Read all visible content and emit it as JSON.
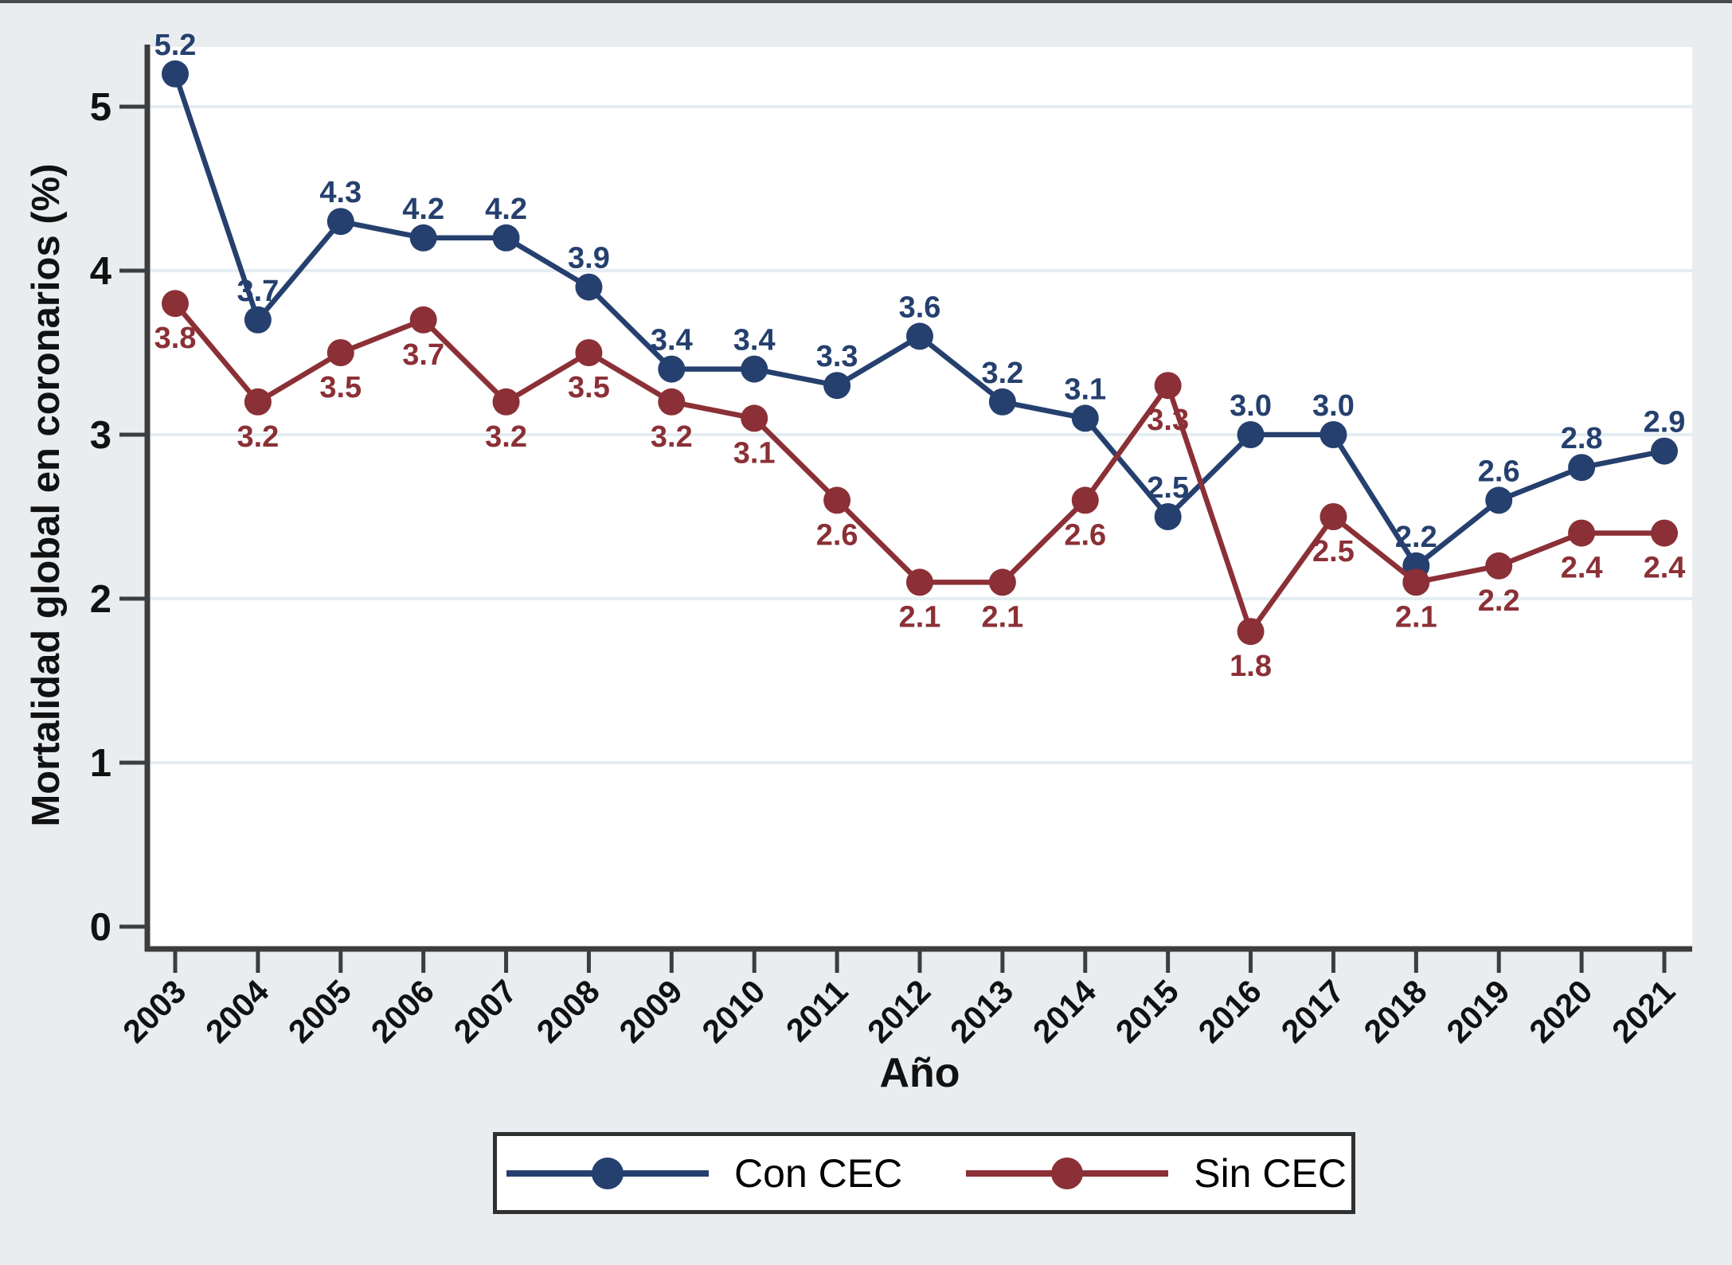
{
  "figure": {
    "background": "#e9edf0",
    "plot_background": "#ffffff",
    "axis_color": "#3d3d3d",
    "grid_color": "#e3edf2",
    "tick_label_color": "#111111"
  },
  "chart_data": {
    "type": "line",
    "title": "",
    "xlabel": "Año",
    "ylabel": "Mortalidad global en coronarios (%)",
    "categories": [
      "2003",
      "2004",
      "2005",
      "2006",
      "2007",
      "2008",
      "2009",
      "2010",
      "2011",
      "2012",
      "2013",
      "2014",
      "2015",
      "2016",
      "2017",
      "2018",
      "2019",
      "2020",
      "2021"
    ],
    "yticks": [
      0,
      1,
      2,
      3,
      4,
      5
    ],
    "ylim": [
      0,
      5.4
    ],
    "grid": "horizontal",
    "legend_position": "bottom",
    "series": [
      {
        "name": "Con CEC",
        "color": "#25406e",
        "label_position": "above",
        "values": [
          5.2,
          3.7,
          4.3,
          4.2,
          4.2,
          3.9,
          3.4,
          3.4,
          3.3,
          3.6,
          3.2,
          3.1,
          2.5,
          3.0,
          3.0,
          2.2,
          2.6,
          2.8,
          2.9
        ]
      },
      {
        "name": "Sin CEC",
        "color": "#8b3036",
        "label_position": "below",
        "values": [
          3.8,
          3.2,
          3.5,
          3.7,
          3.2,
          3.5,
          3.2,
          3.1,
          2.6,
          2.1,
          2.1,
          2.6,
          3.3,
          1.8,
          2.5,
          2.1,
          2.2,
          2.4,
          2.4
        ]
      }
    ]
  }
}
